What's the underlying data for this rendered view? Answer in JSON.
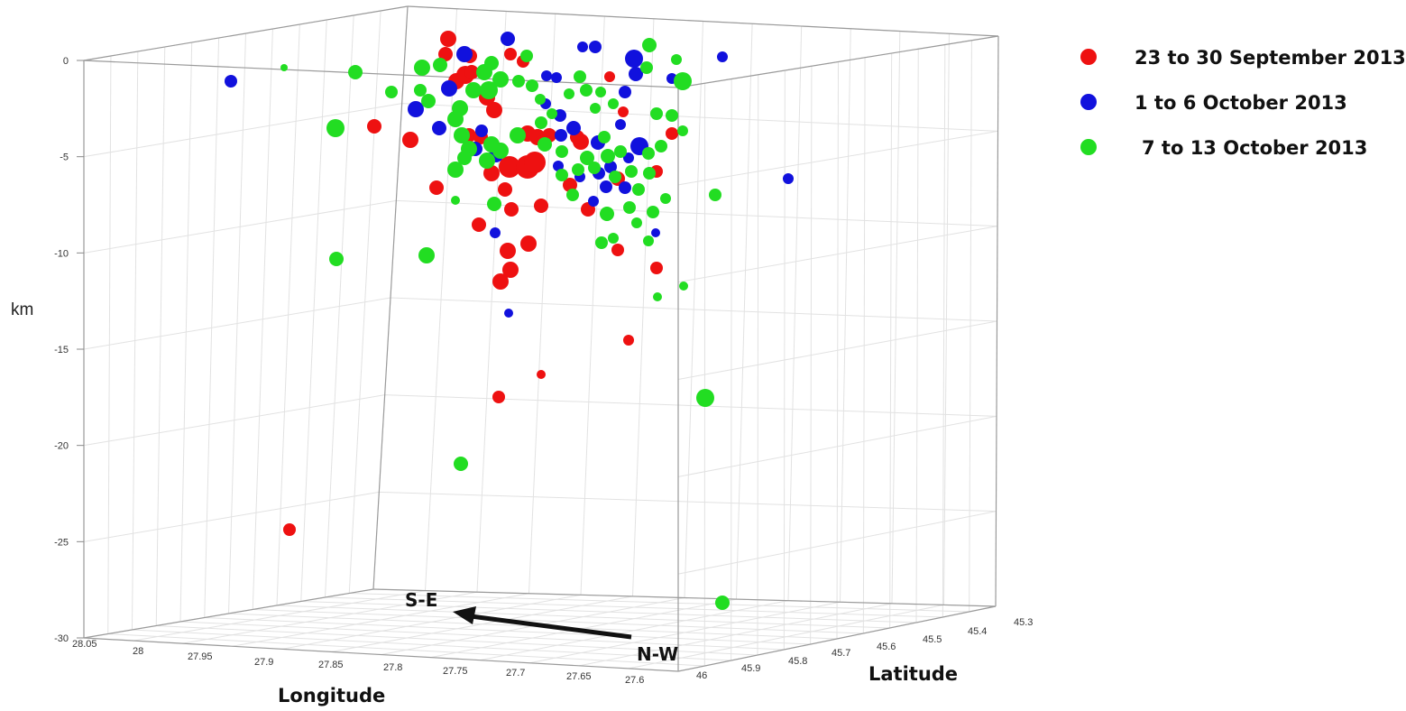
{
  "chart_data": {
    "type": "scatter",
    "z_label": "km",
    "x_label": "Longitude",
    "y_label": "Latitude",
    "z_ticks": [
      "0",
      "-5",
      "-10",
      "-15",
      "-20",
      "-25",
      "-30"
    ],
    "x_ticks": [
      "28.05",
      "28",
      "27.95",
      "27.9",
      "27.85",
      "27.8",
      "27.75",
      "27.7",
      "27.65",
      "27.6"
    ],
    "y_ticks": [
      "46",
      "45.9",
      "45.8",
      "45.7",
      "45.6",
      "45.5",
      "45.4",
      "45.3"
    ],
    "z_range": [
      -30,
      0
    ],
    "grid": true,
    "legend_position": "top-right",
    "series": [
      {
        "name": "23 to 30 September 2013",
        "color": "#ee1111",
        "points": [
          [
            497,
            43,
            9
          ],
          [
            494,
            60,
            8
          ],
          [
            521,
            62,
            8
          ],
          [
            580,
            68,
            7
          ],
          [
            566,
            60,
            7
          ],
          [
            506,
            90,
            9
          ],
          [
            516,
            83,
            10
          ],
          [
            523,
            80,
            8
          ],
          [
            540,
            108,
            9
          ],
          [
            548,
            122,
            9
          ],
          [
            585,
            148,
            9
          ],
          [
            596,
            152,
            9
          ],
          [
            609,
            150,
            8
          ],
          [
            644,
            157,
            9
          ],
          [
            640,
            152,
            8
          ],
          [
            415,
            140,
            8
          ],
          [
            455,
            155,
            9
          ],
          [
            520,
            150,
            8
          ],
          [
            533,
            152,
            8
          ],
          [
            565,
            185,
            12
          ],
          [
            585,
            185,
            13
          ],
          [
            593,
            180,
            12
          ],
          [
            545,
            192,
            9
          ],
          [
            632,
            205,
            8
          ],
          [
            652,
            232,
            8
          ],
          [
            685,
            198,
            8
          ],
          [
            728,
            190,
            7
          ],
          [
            745,
            148,
            7
          ],
          [
            484,
            208,
            8
          ],
          [
            560,
            210,
            8
          ],
          [
            567,
            232,
            8
          ],
          [
            600,
            228,
            8
          ],
          [
            531,
            249,
            8
          ],
          [
            563,
            278,
            9
          ],
          [
            586,
            270,
            9
          ],
          [
            566,
            299,
            9
          ],
          [
            555,
            312,
            9
          ],
          [
            685,
            277,
            7
          ],
          [
            728,
            297,
            7
          ],
          [
            697,
            377,
            6
          ],
          [
            600,
            415,
            5
          ],
          [
            553,
            440,
            7
          ],
          [
            321,
            587,
            7
          ],
          [
            676,
            85,
            6
          ],
          [
            691,
            124,
            6
          ]
        ]
      },
      {
        "name": "1 to 6 October 2013",
        "color": "#1111dd",
        "points": [
          [
            256,
            90,
            7
          ],
          [
            563,
            43,
            8
          ],
          [
            515,
            60,
            9
          ],
          [
            498,
            98,
            9
          ],
          [
            461,
            121,
            9
          ],
          [
            487,
            142,
            8
          ],
          [
            534,
            145,
            7
          ],
          [
            527,
            165,
            8
          ],
          [
            550,
            172,
            8
          ],
          [
            605,
            115,
            6
          ],
          [
            621,
            128,
            7
          ],
          [
            636,
            142,
            8
          ],
          [
            622,
            150,
            7
          ],
          [
            663,
            158,
            8
          ],
          [
            703,
            65,
            10
          ],
          [
            705,
            82,
            8
          ],
          [
            660,
            52,
            7
          ],
          [
            646,
            52,
            6
          ],
          [
            617,
            86,
            6
          ],
          [
            606,
            84,
            6
          ],
          [
            693,
            102,
            7
          ],
          [
            688,
            138,
            6
          ],
          [
            709,
            162,
            10
          ],
          [
            677,
            185,
            7
          ],
          [
            664,
            192,
            7
          ],
          [
            697,
            175,
            6
          ],
          [
            693,
            208,
            7
          ],
          [
            745,
            87,
            6
          ],
          [
            801,
            63,
            6
          ],
          [
            874,
            198,
            6
          ],
          [
            727,
            258,
            5
          ],
          [
            564,
            347,
            5
          ],
          [
            549,
            258,
            6
          ],
          [
            658,
            223,
            6
          ],
          [
            672,
            207,
            7
          ],
          [
            619,
            184,
            6
          ],
          [
            643,
            196,
            6
          ]
        ]
      },
      {
        "name": "7 to 13 October 2013",
        "color": "#22dd22",
        "points": [
          [
            315,
            75,
            4
          ],
          [
            394,
            80,
            8
          ],
          [
            434,
            102,
            7
          ],
          [
            468,
            75,
            9
          ],
          [
            466,
            100,
            7
          ],
          [
            372,
            142,
            10
          ],
          [
            488,
            72,
            8
          ],
          [
            475,
            112,
            8
          ],
          [
            510,
            120,
            9
          ],
          [
            505,
            132,
            9
          ],
          [
            545,
            70,
            8
          ],
          [
            537,
            80,
            9
          ],
          [
            525,
            100,
            9
          ],
          [
            555,
            88,
            9
          ],
          [
            542,
            100,
            10
          ],
          [
            575,
            90,
            7
          ],
          [
            590,
            95,
            7
          ],
          [
            643,
            85,
            7
          ],
          [
            650,
            100,
            7
          ],
          [
            666,
            102,
            6
          ],
          [
            720,
            50,
            8
          ],
          [
            717,
            75,
            7
          ],
          [
            757,
            90,
            10
          ],
          [
            750,
            66,
            6
          ],
          [
            584,
            62,
            7
          ],
          [
            599,
            110,
            6
          ],
          [
            612,
            126,
            6
          ],
          [
            631,
            104,
            6
          ],
          [
            660,
            120,
            6
          ],
          [
            680,
            115,
            6
          ],
          [
            728,
            126,
            7
          ],
          [
            745,
            128,
            7
          ],
          [
            757,
            145,
            6
          ],
          [
            512,
            150,
            9
          ],
          [
            520,
            165,
            9
          ],
          [
            545,
            160,
            9
          ],
          [
            574,
            150,
            9
          ],
          [
            600,
            136,
            7
          ],
          [
            604,
            160,
            8
          ],
          [
            623,
            168,
            7
          ],
          [
            651,
            175,
            8
          ],
          [
            670,
            152,
            7
          ],
          [
            688,
            168,
            7
          ],
          [
            700,
            190,
            7
          ],
          [
            719,
            170,
            7
          ],
          [
            733,
            162,
            7
          ],
          [
            505,
            188,
            9
          ],
          [
            515,
            175,
            8
          ],
          [
            540,
            178,
            9
          ],
          [
            555,
            167,
            9
          ],
          [
            623,
            194,
            7
          ],
          [
            641,
            188,
            7
          ],
          [
            659,
            186,
            7
          ],
          [
            674,
            173,
            8
          ],
          [
            682,
            196,
            7
          ],
          [
            708,
            210,
            7
          ],
          [
            720,
            192,
            7
          ],
          [
            738,
            220,
            6
          ],
          [
            793,
            216,
            7
          ],
          [
            505,
            222,
            5
          ],
          [
            548,
            226,
            8
          ],
          [
            635,
            216,
            7
          ],
          [
            673,
            237,
            8
          ],
          [
            698,
            230,
            7
          ],
          [
            706,
            247,
            6
          ],
          [
            724,
            235,
            7
          ],
          [
            667,
            269,
            7
          ],
          [
            680,
            264,
            6
          ],
          [
            719,
            267,
            6
          ],
          [
            373,
            287,
            8
          ],
          [
            473,
            283,
            9
          ],
          [
            758,
            317,
            5
          ],
          [
            729,
            329,
            5
          ],
          [
            782,
            441,
            10
          ],
          [
            511,
            514,
            8
          ],
          [
            801,
            668,
            8
          ]
        ]
      }
    ],
    "annotations": {
      "arrow_start_label": "N-W",
      "arrow_end_label": "S-E"
    }
  }
}
